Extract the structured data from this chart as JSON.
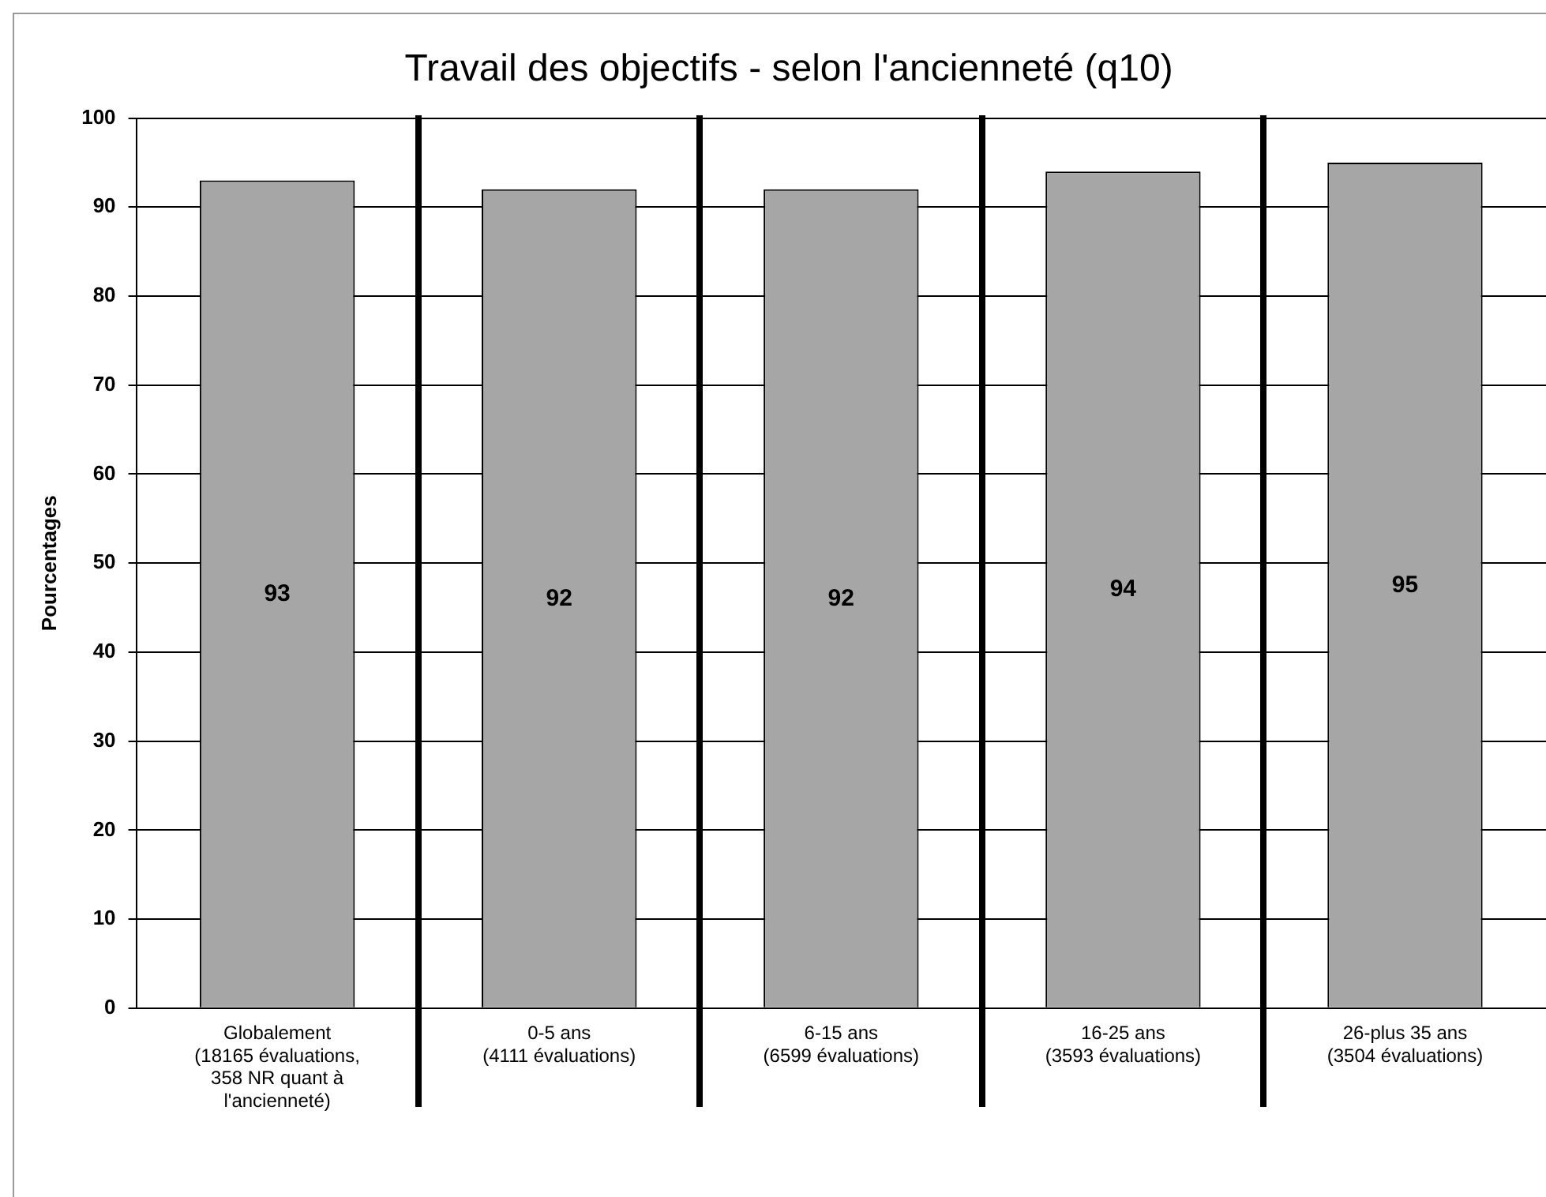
{
  "chart_data": {
    "type": "bar",
    "title": "Travail des objectifs - selon l'ancienneté (q10)",
    "ylabel": "Pourcentages",
    "categories": [
      "Globalement\n(18165 évaluations,\n358 NR quant à\nl'ancienneté)",
      "0-5 ans\n(4111 évaluations)",
      "6-15 ans\n(6599 évaluations)",
      "16-25 ans\n(3593 évaluations)",
      "26-plus 35 ans\n(3504 évaluations)"
    ],
    "values": [
      93,
      92,
      92,
      94,
      95
    ],
    "color": "#a6a6a6",
    "ylim": [
      0,
      100
    ],
    "yticks": [
      0,
      10,
      20,
      30,
      40,
      50,
      60,
      70,
      80,
      90,
      100
    ],
    "grid": "y",
    "data_labels": true
  }
}
